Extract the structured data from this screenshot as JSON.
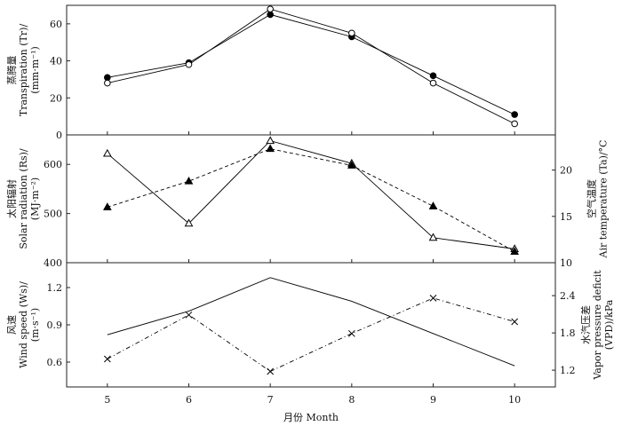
{
  "chart_data": [
    {
      "type": "line",
      "x": [
        5,
        6,
        7,
        8,
        9,
        10
      ],
      "xlim": [
        4.5,
        10.5
      ],
      "ylim": [
        0,
        70
      ],
      "yticks": [
        0,
        20,
        40,
        60
      ],
      "ylabel_cn": "蒸腾量",
      "ylabel_en": "Transpiration (Tr)/",
      "ylabel_unit": "(mm·m⁻¹)",
      "series": [
        {
          "values": [
            31,
            39,
            65,
            53,
            32,
            11
          ],
          "marker": "filled-circle",
          "line": "solid"
        },
        {
          "values": [
            28,
            38,
            68,
            55,
            28,
            6
          ],
          "marker": "open-circle",
          "line": "solid"
        }
      ]
    },
    {
      "type": "line",
      "x": [
        5,
        6,
        7,
        8,
        9,
        10
      ],
      "xlim": [
        4.5,
        10.5
      ],
      "left_axis": {
        "ylim": [
          400,
          660
        ],
        "yticks": [
          400,
          500,
          600
        ],
        "label_cn": "太阳辐射",
        "label_en": "Solar radiation (Rs)/",
        "label_unit": "(MJ·m⁻²)"
      },
      "right_axis": {
        "ylim": [
          10,
          23.8
        ],
        "yticks": [
          10,
          15,
          20
        ],
        "label_cn": "空气温度",
        "label_en": "Air temperature (Ta)/°C"
      },
      "series": [
        {
          "axis": "left",
          "values": [
            622,
            480,
            648,
            602,
            451,
            428
          ],
          "marker": "open-triangle",
          "line": "solid"
        },
        {
          "axis": "right",
          "values": [
            16.0,
            18.8,
            22.3,
            20.5,
            16.1,
            11.2
          ],
          "marker": "filled-triangle",
          "line": "dashed"
        }
      ]
    },
    {
      "type": "line",
      "x": [
        5,
        6,
        7,
        8,
        9,
        10
      ],
      "xlim": [
        4.5,
        10.5
      ],
      "xticks": [
        5,
        6,
        7,
        8,
        9,
        10
      ],
      "xlabel": "月份 Month",
      "left_axis": {
        "ylim": [
          0.4,
          1.4
        ],
        "yticks": [
          0.6,
          0.9,
          1.2
        ],
        "label_cn": "风速",
        "label_en": "Wind speed (Ws)/",
        "label_unit": "(m·s⁻¹)"
      },
      "right_axis": {
        "ylim": [
          0.93,
          2.93
        ],
        "yticks": [
          1.2,
          1.8,
          2.4
        ],
        "label_cn": "水汽压差",
        "label_en": "Vapor pressure deficit",
        "label_unit": "(VPD)/kPa"
      },
      "series": [
        {
          "axis": "left",
          "values": [
            0.82,
            1.01,
            1.28,
            1.09,
            0.83,
            0.57
          ],
          "marker": "none",
          "line": "solid"
        },
        {
          "axis": "right",
          "values": [
            1.38,
            2.09,
            1.18,
            1.79,
            2.36,
            1.98
          ],
          "marker": "cross",
          "line": "dash-dot"
        }
      ]
    }
  ]
}
